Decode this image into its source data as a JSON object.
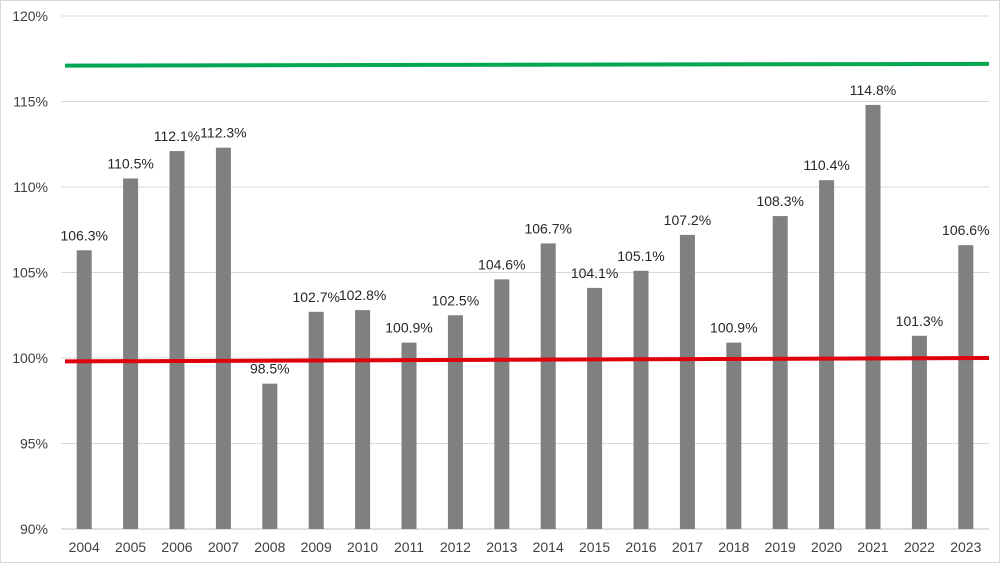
{
  "chart_data": {
    "type": "bar",
    "title": "",
    "xlabel": "",
    "ylabel": "",
    "categories": [
      "2004",
      "2005",
      "2006",
      "2007",
      "2008",
      "2009",
      "2010",
      "2011",
      "2012",
      "2013",
      "2014",
      "2015",
      "2016",
      "2017",
      "2018",
      "2019",
      "2020",
      "2021",
      "2022",
      "2023"
    ],
    "values": [
      106.3,
      110.5,
      112.1,
      112.3,
      98.5,
      102.7,
      102.8,
      100.9,
      102.5,
      104.6,
      106.7,
      104.1,
      105.1,
      107.2,
      100.9,
      108.3,
      110.4,
      114.8,
      101.3,
      106.6
    ],
    "value_labels": [
      "106.3%",
      "110.5%",
      "112.1%",
      "112.3%",
      "98.5%",
      "102.7%",
      "102.8%",
      "100.9%",
      "102.5%",
      "104.6%",
      "106.7%",
      "104.1%",
      "105.1%",
      "107.2%",
      "100.9%",
      "108.3%",
      "110.4%",
      "114.8%",
      "101.3%",
      "106.6%"
    ],
    "ylim": [
      90,
      120
    ],
    "yticks": [
      90,
      95,
      100,
      105,
      110,
      115,
      120
    ],
    "ytick_labels": [
      "90%",
      "95%",
      "100%",
      "105%",
      "110%",
      "115%",
      "120%"
    ],
    "grid": true,
    "bar_color": "#808080",
    "reference_lines": [
      {
        "color": "#00a650",
        "y_start": 117.1,
        "y_end": 117.2
      },
      {
        "color": "#e0000b",
        "y_start": 99.8,
        "y_end": 100.0
      }
    ]
  }
}
